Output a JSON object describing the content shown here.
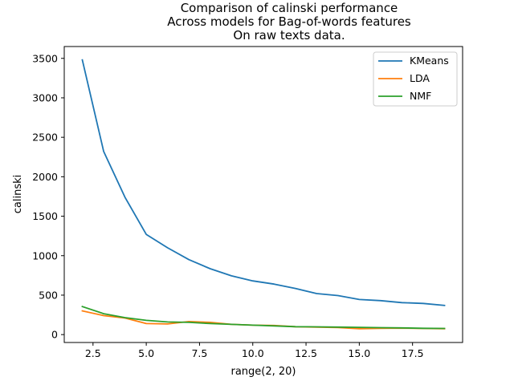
{
  "chart_data": {
    "type": "line",
    "title_lines": [
      "Comparison of calinski performance",
      "Across models for Bag-of-words features",
      "On raw texts data."
    ],
    "xlabel": "range(2, 20)",
    "ylabel": "calinski",
    "xlim": [
      1.15,
      19.85
    ],
    "ylim": [
      -100,
      3650
    ],
    "xticks": [
      2.5,
      5.0,
      7.5,
      10.0,
      12.5,
      15.0,
      17.5
    ],
    "xtick_labels": [
      "2.5",
      "5.0",
      "7.5",
      "10.0",
      "12.5",
      "15.0",
      "17.5"
    ],
    "yticks": [
      0,
      500,
      1000,
      1500,
      2000,
      2500,
      3000,
      3500
    ],
    "ytick_labels": [
      "0",
      "500",
      "1000",
      "1500",
      "2000",
      "2500",
      "3000",
      "3500"
    ],
    "legend_position": "top-right",
    "grid": false,
    "x": [
      2,
      3,
      4,
      5,
      6,
      7,
      8,
      9,
      10,
      11,
      12,
      13,
      14,
      15,
      16,
      17,
      18,
      19
    ],
    "series": [
      {
        "name": "KMeans",
        "color": "#1f77b4",
        "values": [
          3480,
          2320,
          1740,
          1270,
          1100,
          950,
          835,
          745,
          680,
          640,
          585,
          520,
          495,
          445,
          430,
          405,
          395,
          370
        ]
      },
      {
        "name": "LDA",
        "color": "#ff7f0e",
        "values": [
          300,
          240,
          210,
          140,
          135,
          165,
          155,
          130,
          120,
          115,
          100,
          95,
          90,
          75,
          80,
          82,
          78,
          75
        ]
      },
      {
        "name": "NMF",
        "color": "#2ca02c",
        "values": [
          355,
          265,
          215,
          180,
          160,
          155,
          140,
          130,
          120,
          110,
          100,
          98,
          95,
          92,
          88,
          85,
          80,
          78
        ]
      }
    ]
  }
}
